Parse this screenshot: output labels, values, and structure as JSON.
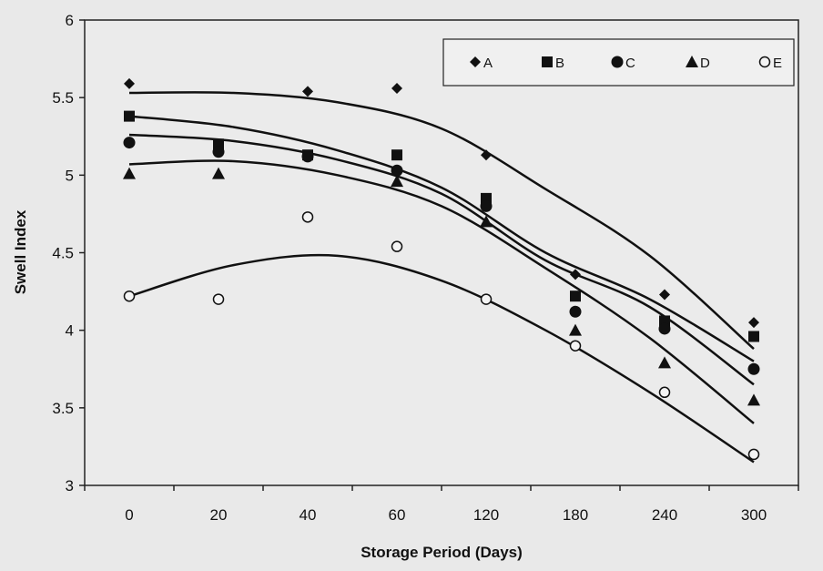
{
  "chart_data": {
    "type": "scatter",
    "title": "",
    "xlabel": "Storage Period (Days)",
    "ylabel": "Swell Index",
    "categories": [
      "0",
      "20",
      "40",
      "60",
      "120",
      "180",
      "240",
      "300"
    ],
    "ylim": [
      3,
      6
    ],
    "yticks": [
      "3",
      "3.5",
      "4",
      "4.5",
      "5",
      "5.5",
      "6"
    ],
    "grid": false,
    "legend_position": "top-right",
    "trendlines": "polynomial",
    "series": [
      {
        "name": "A",
        "marker": "diamond",
        "values": [
          5.59,
          null,
          5.54,
          5.56,
          5.13,
          4.36,
          4.23,
          4.05
        ],
        "fit": [
          5.53,
          5.53,
          5.47,
          5.3,
          4.91,
          4.48,
          3.88
        ]
      },
      {
        "name": "B",
        "marker": "square",
        "values": [
          5.38,
          5.2,
          5.13,
          5.13,
          4.85,
          4.22,
          4.06,
          3.96
        ],
        "fit": [
          5.38,
          5.31,
          5.16,
          4.92,
          4.5,
          4.2,
          3.8
        ]
      },
      {
        "name": "C",
        "marker": "circle",
        "values": [
          5.21,
          5.15,
          5.12,
          5.03,
          4.8,
          4.12,
          4.01,
          3.75
        ],
        "fit": [
          5.26,
          5.22,
          5.1,
          4.88,
          4.45,
          4.15,
          3.65
        ]
      },
      {
        "name": "D",
        "marker": "triangle",
        "values": [
          5.01,
          5.01,
          null,
          4.96,
          4.7,
          4.0,
          3.79,
          3.55
        ],
        "fit": [
          5.07,
          5.09,
          5.0,
          4.8,
          4.4,
          3.95,
          3.4
        ]
      },
      {
        "name": "E",
        "marker": "open-circle",
        "values": [
          4.22,
          4.2,
          4.73,
          4.54,
          4.2,
          3.9,
          3.6,
          3.2
        ],
        "fit": [
          4.22,
          4.42,
          4.48,
          4.32,
          4.0,
          3.6,
          3.15
        ]
      }
    ]
  }
}
